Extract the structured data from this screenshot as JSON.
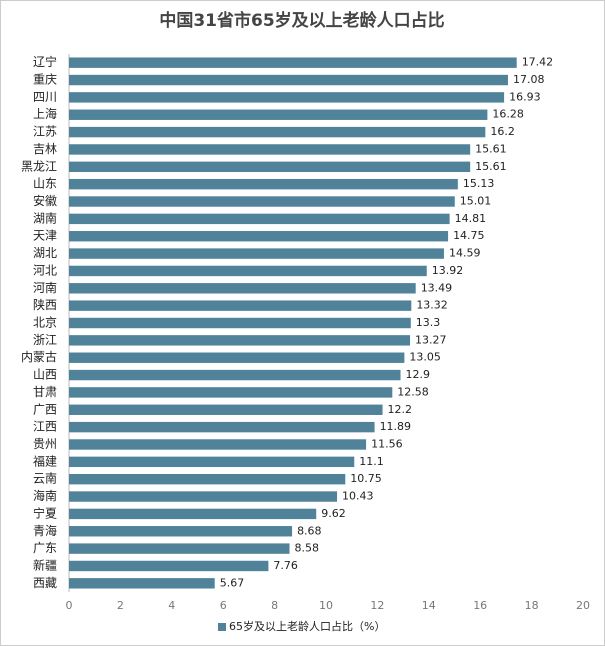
{
  "chart_data": {
    "type": "bar",
    "orientation": "horizontal",
    "title": "中国31省市65岁及以上老龄人口占比",
    "categories": [
      "辽宁",
      "重庆",
      "四川",
      "上海",
      "江苏",
      "吉林",
      "黑龙江",
      "山东",
      "安徽",
      "湖南",
      "天津",
      "湖北",
      "河北",
      "河南",
      "陕西",
      "北京",
      "浙江",
      "内蒙古",
      "山西",
      "甘肃",
      "广西",
      "江西",
      "贵州",
      "福建",
      "云南",
      "海南",
      "宁夏",
      "青海",
      "广东",
      "新疆",
      "西藏"
    ],
    "series": [
      {
        "name": "65岁及以上老龄人口占比（%）",
        "color": "#50839a",
        "values": [
          17.42,
          17.08,
          16.93,
          16.28,
          16.2,
          15.61,
          15.61,
          15.13,
          15.01,
          14.81,
          14.75,
          14.59,
          13.92,
          13.49,
          13.32,
          13.3,
          13.27,
          13.05,
          12.9,
          12.58,
          12.2,
          11.89,
          11.56,
          11.1,
          10.75,
          10.43,
          9.62,
          8.68,
          8.58,
          7.76,
          5.67
        ]
      }
    ],
    "xlim": [
      0,
      20
    ],
    "xticks": [
      0,
      2,
      4,
      6,
      8,
      10,
      12,
      14,
      16,
      18,
      20
    ],
    "grid": false,
    "legend": "bottom"
  }
}
